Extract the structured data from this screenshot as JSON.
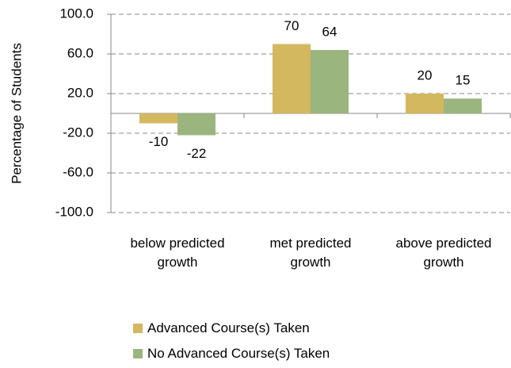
{
  "chart_data": {
    "type": "bar",
    "y_label": "Percentage of Students",
    "categories": [
      "below predicted growth",
      "met predicted growth",
      "above predicted growth"
    ],
    "series": [
      {
        "name": "Advanced Course(s) Taken",
        "color": "#d4b860",
        "values": [
          -10,
          70,
          20
        ]
      },
      {
        "name": "No Advanced Course(s) Taken",
        "color": "#9bb57f",
        "values": [
          -22,
          64,
          15
        ]
      }
    ],
    "ylim": [
      -100,
      100
    ],
    "yticks": [
      {
        "value": -100,
        "label": "-100.0"
      },
      {
        "value": -60,
        "label": "-60.0"
      },
      {
        "value": -20,
        "label": "-20.0"
      },
      {
        "value": 20,
        "label": "20.0"
      },
      {
        "value": 60,
        "label": "60.0"
      },
      {
        "value": 100,
        "label": "100.0"
      }
    ],
    "grid": true
  }
}
